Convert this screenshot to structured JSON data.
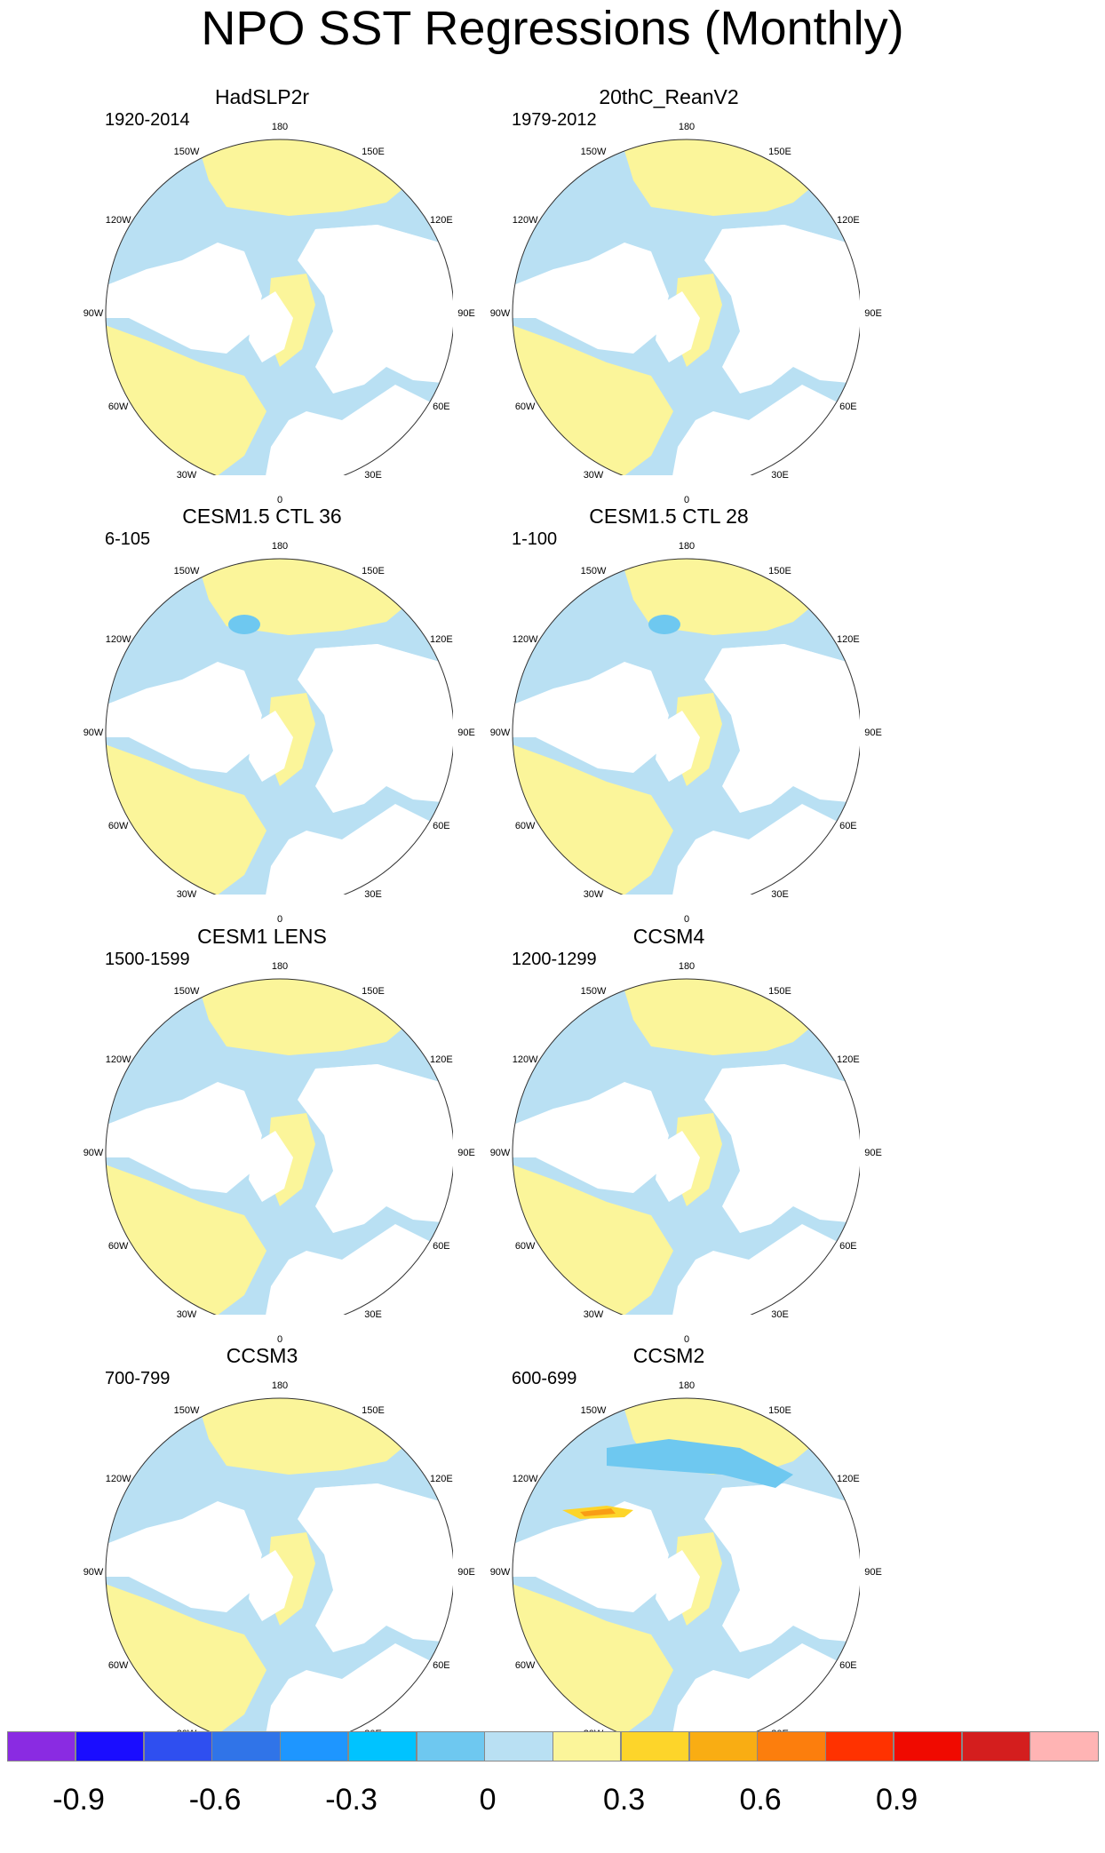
{
  "title": "NPO SST Regressions (Monthly)",
  "lon_labels": [
    "180",
    "150E",
    "120E",
    "90E",
    "60E",
    "30E",
    "0",
    "30W",
    "60W",
    "90W",
    "120W",
    "150W"
  ],
  "colors": {
    "land": "#ffffff",
    "coast": "#555555",
    "neg_weak": "#b9e0f3",
    "pos_weak": "#fbf59a",
    "neg_mid": "#6ec8f0",
    "pos_mid": "#fdd52a",
    "pos_strong": "#f99d14"
  },
  "panels": [
    {
      "title": "HadSLP2r",
      "years": "1920-2014"
    },
    {
      "title": "20thC_ReanV2",
      "years": "1979-2012"
    },
    {
      "title": "CESM1.5 CTL 36",
      "years": "6-105"
    },
    {
      "title": "CESM1.5 CTL 28",
      "years": "1-100"
    },
    {
      "title": "CESM1 LENS",
      "years": "1500-1599"
    },
    {
      "title": "CCSM4",
      "years": "1200-1299"
    },
    {
      "title": "CCSM3",
      "years": "700-799"
    },
    {
      "title": "CCSM2",
      "years": "600-699"
    }
  ],
  "colorbar": {
    "colors": [
      "#8a2be2",
      "#1a0dff",
      "#2f4ff0",
      "#3074e8",
      "#1e96ff",
      "#00c3ff",
      "#6ec8f0",
      "#b9e0f3",
      "#fbf59a",
      "#fdd52a",
      "#f9ad13",
      "#fc7e0d",
      "#ff3200",
      "#f00a00",
      "#d41e1e",
      "#ffb4b4"
    ],
    "labels": [
      "-0.9",
      "-0.6",
      "-0.3",
      "0",
      "0.3",
      "0.6",
      "0.9"
    ]
  }
}
